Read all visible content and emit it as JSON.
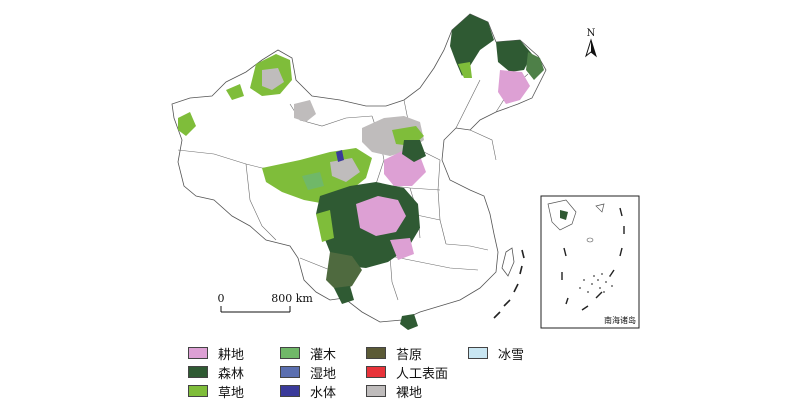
{
  "map": {
    "north_label": "N",
    "scale_zero": "0",
    "scale_distance": "800 km",
    "inset_label": "南海诸岛"
  },
  "legend": {
    "items": [
      {
        "label": "耕地",
        "color": "#dda0d4"
      },
      {
        "label": "森林",
        "color": "#2f5a33"
      },
      {
        "label": "草地",
        "color": "#7fbd3a"
      },
      {
        "label": "灌木",
        "color": "#70b868"
      },
      {
        "label": "湿地",
        "color": "#5b6fb0"
      },
      {
        "label": "水体",
        "color": "#3a3a9a"
      },
      {
        "label": "苔原",
        "color": "#5b5a36"
      },
      {
        "label": "人工表面",
        "color": "#e8333a"
      },
      {
        "label": "裸地",
        "color": "#bfbcbc"
      },
      {
        "label": "冰雪",
        "color": "#c9e6f2"
      }
    ]
  }
}
